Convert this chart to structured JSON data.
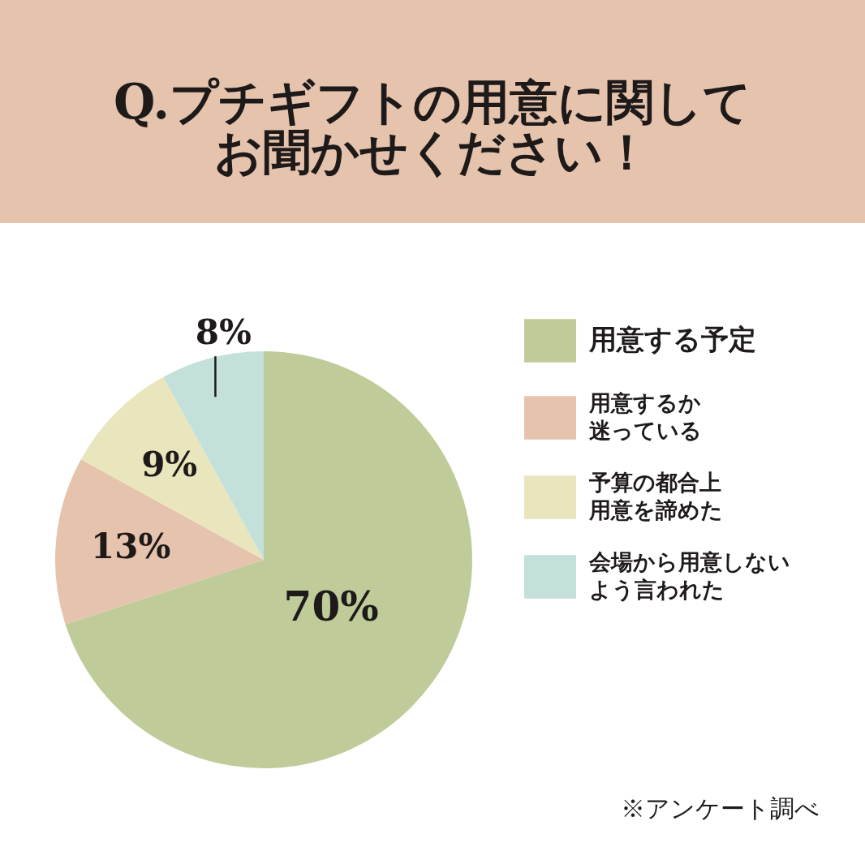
{
  "chart_data": {
    "type": "pie",
    "title": "Q.プチギフトの用意に関してお聞かせください！",
    "categories": [
      "用意する予定",
      "用意するか迷っている",
      "予算の都合上用意を諦めた",
      "会場から用意しないよう言われた"
    ],
    "values": [
      70,
      13,
      9,
      8
    ],
    "colors": [
      "#bfcc99",
      "#e6c3ad",
      "#e9e5bd",
      "#c3e1da"
    ],
    "value_labels": [
      "70%",
      "13%",
      "9%",
      "8%"
    ],
    "legend": "right",
    "annotations": [
      "※アンケート調べ"
    ]
  }
}
